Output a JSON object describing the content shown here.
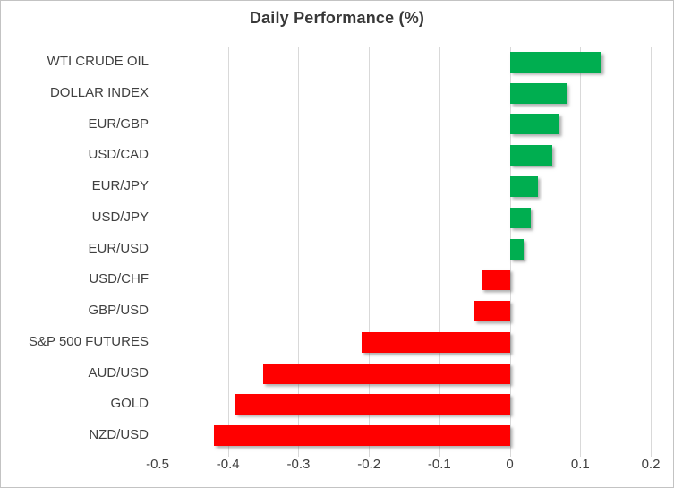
{
  "chart_data": {
    "type": "bar",
    "orientation": "horizontal",
    "title": "Daily Performance (%)",
    "categories": [
      "WTI CRUDE OIL",
      "DOLLAR INDEX",
      "EUR/GBP",
      "USD/CAD",
      "EUR/JPY",
      "USD/JPY",
      "EUR/USD",
      "USD/CHF",
      "GBP/USD",
      "S&P 500 FUTURES",
      "AUD/USD",
      "GOLD",
      "NZD/USD"
    ],
    "values": [
      0.13,
      0.08,
      0.07,
      0.06,
      0.04,
      0.03,
      0.02,
      -0.04,
      -0.05,
      -0.21,
      -0.35,
      -0.39,
      -0.42
    ],
    "xlim": [
      -0.5,
      0.2
    ],
    "x_ticks": [
      -0.5,
      -0.4,
      -0.3,
      -0.2,
      -0.1,
      0,
      0.1,
      0.2
    ],
    "x_tick_labels": [
      "-0.5",
      "-0.4",
      "-0.3",
      "-0.2",
      "-0.1",
      "0",
      "0.1",
      "0.2"
    ],
    "xlabel": "",
    "ylabel": "",
    "grid": true,
    "legend": false,
    "colors": {
      "positive": "#00AE50",
      "negative": "#FF0000",
      "gridline": "#D9D9D9",
      "text": "#404040",
      "title": "#383838",
      "chart_border": "#C3C3C3",
      "background": "#FFFFFF"
    }
  }
}
